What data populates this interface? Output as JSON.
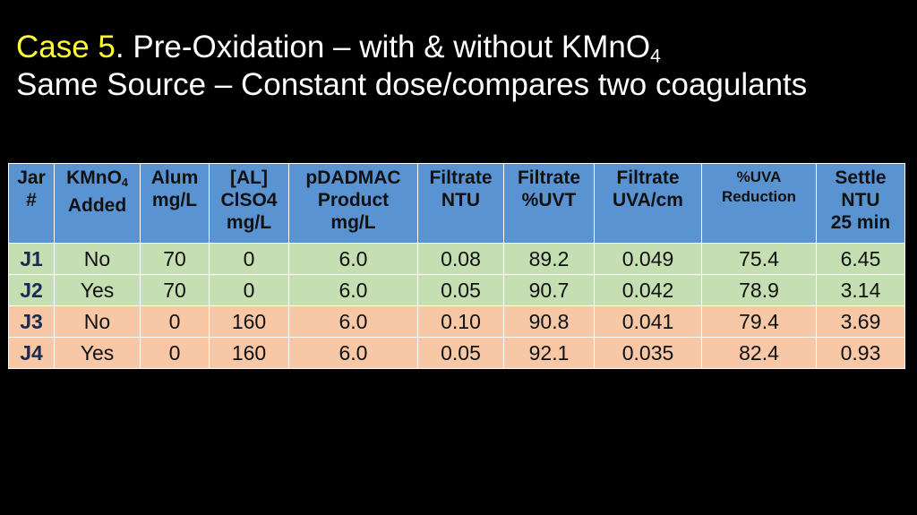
{
  "header": {
    "title_highlight": "Case 5",
    "title_rest": ".  Pre-Oxidation – with & without KMnO",
    "title_sub": "4",
    "subtitle": "Same Source – Constant dose/compares two coagulants"
  },
  "table": {
    "columns": [
      {
        "lines": [
          {
            "text": "Jar"
          },
          {
            "text": "#"
          }
        ]
      },
      {
        "lines": [
          {
            "text": "KMnO",
            "sub": "4"
          },
          {
            "text": "Added"
          }
        ]
      },
      {
        "lines": [
          {
            "text": "Alum"
          },
          {
            "text": "mg/L"
          }
        ]
      },
      {
        "lines": [
          {
            "text": "[AL]"
          },
          {
            "text": "ClSO4"
          },
          {
            "text": "mg/L"
          }
        ]
      },
      {
        "lines": [
          {
            "text": "pDADMAC"
          },
          {
            "text": "Product"
          },
          {
            "text": "mg/L"
          }
        ]
      },
      {
        "lines": [
          {
            "text": "Filtrate"
          },
          {
            "text": "NTU"
          }
        ]
      },
      {
        "lines": [
          {
            "text": "Filtrate"
          },
          {
            "text": "%UVT"
          }
        ]
      },
      {
        "lines": [
          {
            "text": "Filtrate"
          },
          {
            "text": "UVA/cm"
          }
        ]
      },
      {
        "lines": [
          {
            "text": "%UVA"
          },
          {
            "text": "Reduction"
          }
        ],
        "small": true
      },
      {
        "lines": [
          {
            "text": "Settle"
          },
          {
            "text": "NTU"
          },
          {
            "text": "25 min"
          }
        ]
      }
    ],
    "rows": [
      [
        "J1",
        "No",
        "70",
        "0",
        "6.0",
        "0.08",
        "89.2",
        "0.049",
        "75.4",
        "6.45"
      ],
      [
        "J2",
        "Yes",
        "70",
        "0",
        "6.0",
        "0.05",
        "90.7",
        "0.042",
        "78.9",
        "3.14"
      ],
      [
        "J3",
        "No",
        "0",
        "160",
        "6.0",
        "0.10",
        "90.8",
        "0.041",
        "79.4",
        "3.69"
      ],
      [
        "J4",
        "Yes",
        "0",
        "160",
        "6.0",
        "0.05",
        "92.1",
        "0.035",
        "82.4",
        "0.93"
      ]
    ]
  }
}
